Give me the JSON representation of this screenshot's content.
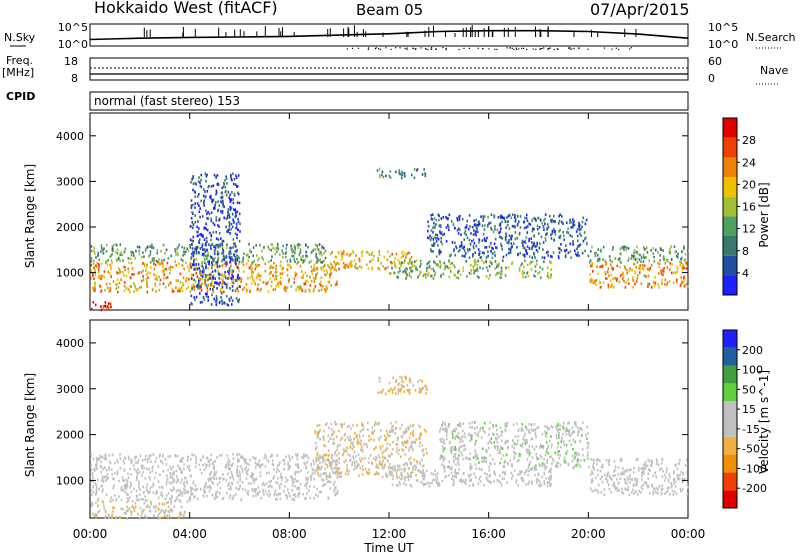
{
  "header": {
    "title": "Hokkaido West (fitACF)",
    "beam": "Beam 05",
    "date": "07/Apr/2015"
  },
  "strip_labels": {
    "nsky": "N.Sky",
    "nsky_top_tick": "10^5",
    "nsky_bottom_tick": "10^0",
    "nsearch": "N.Search",
    "nsearch_top_tick": "10^5",
    "nsearch_bottom_tick": "10^0",
    "freq": "Freq.",
    "freq_unit": "[MHz]",
    "freq_top_tick": "18",
    "freq_bottom_tick": "8",
    "nave": "Nave",
    "nave_top_tick": "60",
    "nave_bottom_tick": "0",
    "cpid": "CPID",
    "cpid_text": "normal (fast stereo) 153"
  },
  "axes": {
    "ylabel": "Slant Range [km]",
    "xlabel": "Time UT",
    "y_ticks": [
      "1000",
      "2000",
      "3000",
      "4000"
    ],
    "x_ticks": [
      "00:00",
      "04:00",
      "08:00",
      "12:00",
      "16:00",
      "20:00",
      "00:00"
    ]
  },
  "colors": {
    "power": [
      "#2020ff",
      "#2050a0",
      "#3a7a6e",
      "#50a060",
      "#a0c030",
      "#f0c000",
      "#f08000",
      "#f04000",
      "#e00000"
    ],
    "velocity": [
      "#e00000",
      "#f04000",
      "#f09000",
      "#f0b040",
      "#c0c0c0",
      "#c0c0c0",
      "#60d040",
      "#40a040",
      "#2060a0",
      "#2020ff"
    ]
  },
  "chart_data": [
    {
      "type": "line",
      "title": "",
      "ylabel": "N.Sky",
      "ylim": [
        1,
        100000
      ],
      "scale": "log",
      "x": [
        0,
        2,
        4,
        6,
        8,
        10,
        12,
        14,
        16,
        18,
        20,
        22,
        24
      ],
      "series": [
        {
          "name": "N.Sky",
          "values": [
            30,
            60,
            90,
            110,
            150,
            300,
            600,
            2000,
            3000,
            3000,
            2000,
            500,
            60
          ]
        }
      ]
    },
    {
      "type": "line",
      "title": "",
      "ylabel": "Freq. [MHz]",
      "ylim": [
        8,
        18
      ],
      "x": [
        0,
        24
      ],
      "series": [
        {
          "name": "Freq.",
          "values": [
            10.5,
            10.5
          ]
        }
      ]
    },
    {
      "type": "heatmap",
      "title": "",
      "xlabel": "",
      "ylabel": "Slant Range [km]",
      "xlim": [
        0,
        24
      ],
      "ylim": [
        180,
        4500
      ],
      "colorbar_label": "Power [dB]",
      "colorbar_ticks": [
        "4",
        "8",
        "12",
        "16",
        "20",
        "24",
        "28"
      ],
      "colorbar_range": [
        0,
        30
      ],
      "scatter_bands": [
        {
          "t0": 0,
          "t1": 1.0,
          "r0": 200,
          "r1": 380,
          "value": 26
        },
        {
          "t0": 0,
          "t1": 10.0,
          "r0": 600,
          "r1": 1250,
          "value": 20
        },
        {
          "t0": 0,
          "t1": 9.5,
          "r0": 1250,
          "r1": 1650,
          "value": 11
        },
        {
          "t0": 9.5,
          "t1": 13.0,
          "r0": 1100,
          "r1": 1500,
          "value": 19
        },
        {
          "t0": 12.0,
          "t1": 18.5,
          "r0": 900,
          "r1": 1300,
          "value": 13
        },
        {
          "t0": 13.5,
          "t1": 20.0,
          "r0": 1350,
          "r1": 2300,
          "value": 6
        },
        {
          "t0": 11.5,
          "t1": 13.5,
          "r0": 3100,
          "r1": 3300,
          "value": 10
        },
        {
          "t0": 20.0,
          "t1": 24.0,
          "r0": 700,
          "r1": 1250,
          "value": 21
        },
        {
          "t0": 20.0,
          "t1": 24.0,
          "r0": 1250,
          "r1": 1600,
          "value": 11
        },
        {
          "t0": 4.0,
          "t1": 6.0,
          "r0": 300,
          "r1": 3200,
          "value": 5
        }
      ]
    },
    {
      "type": "heatmap",
      "title": "",
      "xlabel": "Time UT",
      "ylabel": "Slant Range [km]",
      "xlim": [
        0,
        24
      ],
      "ylim": [
        180,
        4500
      ],
      "colorbar_label": "Velocity [m s^-1]",
      "colorbar_ticks": [
        "-200",
        "-100",
        "-50",
        "-15",
        "15",
        "50",
        "100",
        "200"
      ],
      "colorbar_range": [
        -250,
        250
      ],
      "scatter_bands": [
        {
          "t0": 0,
          "t1": 10.0,
          "r0": 600,
          "r1": 1600,
          "value": 0
        },
        {
          "t0": 9.0,
          "t1": 13.5,
          "r0": 1100,
          "r1": 2300,
          "value": -40
        },
        {
          "t0": 11.5,
          "t1": 13.5,
          "r0": 2900,
          "r1": 3300,
          "value": -60
        },
        {
          "t0": 12.0,
          "t1": 18.5,
          "r0": 900,
          "r1": 1300,
          "value": 0
        },
        {
          "t0": 14.0,
          "t1": 20.0,
          "r0": 1300,
          "r1": 2300,
          "value": 30
        },
        {
          "t0": 20.0,
          "t1": 24.0,
          "r0": 700,
          "r1": 1500,
          "value": 0
        },
        {
          "t0": 0,
          "t1": 4.0,
          "r0": 200,
          "r1": 600,
          "value": -40
        }
      ]
    }
  ]
}
